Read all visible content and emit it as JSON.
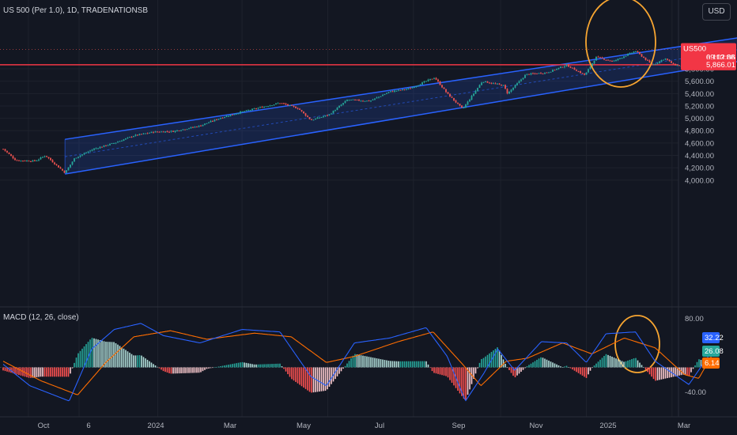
{
  "header": {
    "title": "US 500 (Per 1.0), 1D, TRADENATIONSB",
    "currency": "USD",
    "macd_label": "MACD (12, 26, close)"
  },
  "price_tag": {
    "symbol": "US500",
    "price": "6,113.88",
    "countdown": "09:02:06"
  },
  "line_tag": "5,866.01",
  "colors": {
    "background": "#131722",
    "up": "#26a69a",
    "down": "#ef5350",
    "channel": "#2962ff",
    "hline": "#f23645",
    "highlight": "#f7a531",
    "macd": "#2962ff",
    "signal": "#ff6d00"
  },
  "chart_data": [
    {
      "type": "candlestick",
      "title": "US 500 (Per 1.0), 1D, TRADENATIONSB",
      "ylim": [
        3900,
        6300
      ],
      "y_ticks": [
        "4,000.00",
        "4,200.00",
        "4,400.00",
        "4,600.00",
        "4,800.00",
        "5,000.00",
        "5,200.00",
        "5,400.00",
        "5,600.00",
        "5,800.00"
      ],
      "x_ticks": [
        "Oct",
        "6",
        "2024",
        "Mar",
        "May",
        "Jul",
        "Sep",
        "Nov",
        "2025",
        "Mar"
      ],
      "price_path": [
        [
          "2023-09-13",
          4505
        ],
        [
          "2023-09-22",
          4320
        ],
        [
          "2023-10-06",
          4310
        ],
        [
          "2023-10-13",
          4400
        ],
        [
          "2023-10-27",
          4120
        ],
        [
          "2023-11-03",
          4360
        ],
        [
          "2023-11-17",
          4510
        ],
        [
          "2023-12-01",
          4600
        ],
        [
          "2023-12-15",
          4720
        ],
        [
          "2023-12-29",
          4780
        ],
        [
          "2024-01-12",
          4790
        ],
        [
          "2024-01-31",
          4880
        ],
        [
          "2024-02-15",
          5010
        ],
        [
          "2024-02-29",
          5100
        ],
        [
          "2024-03-15",
          5180
        ],
        [
          "2024-03-28",
          5250
        ],
        [
          "2024-04-10",
          5160
        ],
        [
          "2024-04-19",
          4970
        ],
        [
          "2024-05-02",
          5060
        ],
        [
          "2024-05-15",
          5300
        ],
        [
          "2024-05-31",
          5280
        ],
        [
          "2024-06-14",
          5430
        ],
        [
          "2024-06-28",
          5480
        ],
        [
          "2024-07-16",
          5660
        ],
        [
          "2024-07-25",
          5400
        ],
        [
          "2024-08-05",
          5150
        ],
        [
          "2024-08-19",
          5600
        ],
        [
          "2024-09-03",
          5530
        ],
        [
          "2024-09-06",
          5400
        ],
        [
          "2024-09-19",
          5710
        ],
        [
          "2024-10-04",
          5740
        ],
        [
          "2024-10-18",
          5860
        ],
        [
          "2024-10-31",
          5700
        ],
        [
          "2024-11-08",
          5990
        ],
        [
          "2024-11-20",
          5920
        ],
        [
          "2024-12-06",
          6090
        ],
        [
          "2024-12-18",
          5860
        ],
        [
          "2024-12-27",
          5970
        ],
        [
          "2025-01-02",
          5870
        ],
        [
          "2025-01-13",
          5820
        ],
        [
          "2025-01-22",
          6100
        ],
        [
          "2025-01-31",
          6113.88
        ]
      ],
      "last_price": 6113.88,
      "horizontal_line": 5866.01,
      "channel": {
        "upper": [
          [
            "2023-10-27",
            4660
          ],
          [
            "2025-02-28",
            6340
          ]
        ],
        "lower": [
          [
            "2023-10-27",
            4100
          ],
          [
            "2025-02-28",
            5960
          ]
        ]
      },
      "highlight": "ellipse around Jan 2025 bounce off channel support"
    },
    {
      "type": "line+bar",
      "title": "MACD (12, 26, close)",
      "ylim": [
        -60,
        95
      ],
      "y_ticks": [
        "80.00",
        "-40.00"
      ],
      "series": [
        {
          "name": "MACD",
          "last": 32.22
        },
        {
          "name": "Signal",
          "last": 26.08
        },
        {
          "name": "Histogram",
          "last": 6.14
        }
      ],
      "macd_path": [
        [
          "2023-09-13",
          5
        ],
        [
          "2023-10-02",
          -30
        ],
        [
          "2023-10-30",
          -55
        ],
        [
          "2023-11-15",
          30
        ],
        [
          "2023-12-01",
          62
        ],
        [
          "2023-12-20",
          72
        ],
        [
          "2024-01-05",
          52
        ],
        [
          "2024-01-31",
          40
        ],
        [
          "2024-03-01",
          62
        ],
        [
          "2024-03-28",
          58
        ],
        [
          "2024-04-19",
          -15
        ],
        [
          "2024-04-30",
          -30
        ],
        [
          "2024-05-20",
          40
        ],
        [
          "2024-06-14",
          48
        ],
        [
          "2024-07-10",
          65
        ],
        [
          "2024-07-25",
          18
        ],
        [
          "2024-08-07",
          -55
        ],
        [
          "2024-08-20",
          -10
        ],
        [
          "2024-08-30",
          30
        ],
        [
          "2024-09-11",
          -5
        ],
        [
          "2024-09-30",
          42
        ],
        [
          "2024-10-18",
          40
        ],
        [
          "2024-11-01",
          8
        ],
        [
          "2024-11-15",
          55
        ],
        [
          "2024-12-06",
          58
        ],
        [
          "2024-12-20",
          10
        ],
        [
          "2025-01-13",
          -28
        ],
        [
          "2025-01-31",
          32.22
        ]
      ],
      "signal_path": [
        [
          "2023-09-13",
          10
        ],
        [
          "2023-10-10",
          -22
        ],
        [
          "2023-11-05",
          -45
        ],
        [
          "2023-11-25",
          8
        ],
        [
          "2023-12-15",
          50
        ],
        [
          "2024-01-10",
          60
        ],
        [
          "2024-02-05",
          46
        ],
        [
          "2024-03-10",
          56
        ],
        [
          "2024-04-05",
          50
        ],
        [
          "2024-04-30",
          8
        ],
        [
          "2024-05-20",
          18
        ],
        [
          "2024-06-20",
          42
        ],
        [
          "2024-07-15",
          58
        ],
        [
          "2024-08-05",
          5
        ],
        [
          "2024-08-18",
          -30
        ],
        [
          "2024-09-05",
          10
        ],
        [
          "2024-09-20",
          15
        ],
        [
          "2024-10-15",
          40
        ],
        [
          "2024-11-05",
          22
        ],
        [
          "2024-11-28",
          48
        ],
        [
          "2024-12-20",
          32
        ],
        [
          "2025-01-10",
          -12
        ],
        [
          "2025-01-20",
          -18
        ],
        [
          "2025-01-31",
          26.08
        ]
      ]
    }
  ]
}
